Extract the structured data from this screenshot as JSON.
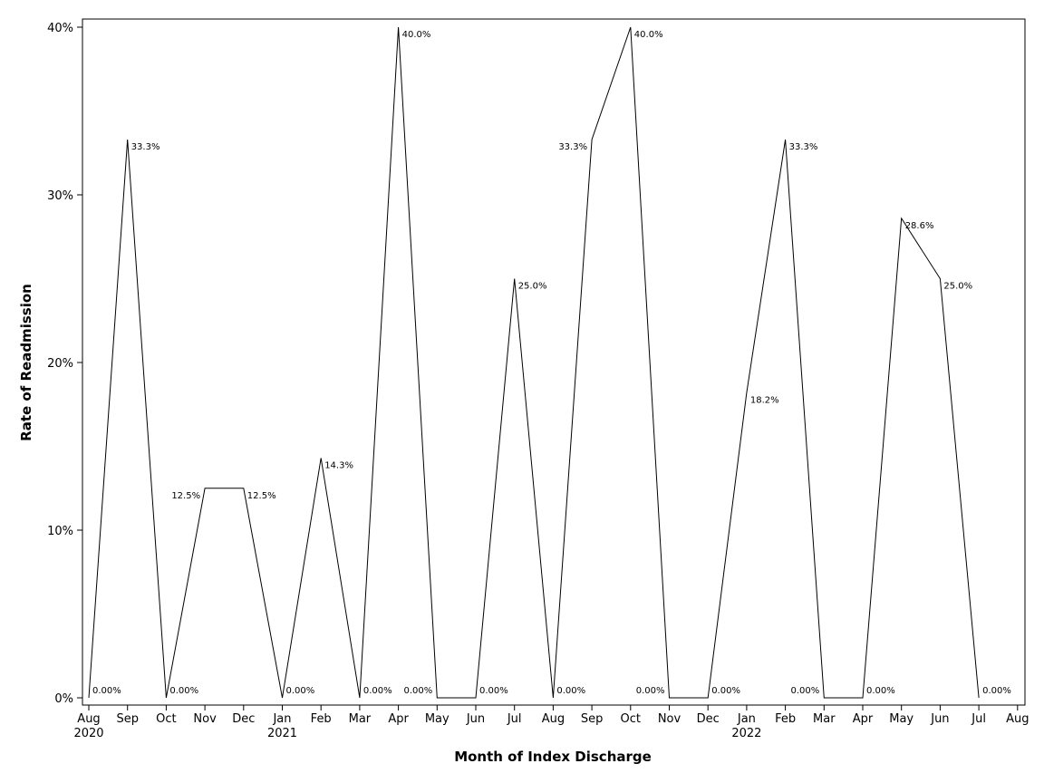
{
  "chart_data": {
    "type": "line",
    "xlabel": "Month of Index Discharge",
    "ylabel": "Rate of Readmission",
    "ylim": [
      0,
      40
    ],
    "y_ticks": [
      0,
      10,
      20,
      30,
      40
    ],
    "y_tick_labels": [
      "0%",
      "10%",
      "20%",
      "30%",
      "40%"
    ],
    "x_tick_labels": [
      [
        "Aug",
        "2020"
      ],
      [
        "Sep",
        ""
      ],
      [
        "Oct",
        ""
      ],
      [
        "Nov",
        ""
      ],
      [
        "Dec",
        ""
      ],
      [
        "Jan",
        "2021"
      ],
      [
        "Feb",
        ""
      ],
      [
        "Mar",
        ""
      ],
      [
        "Apr",
        ""
      ],
      [
        "May",
        ""
      ],
      [
        "Jun",
        ""
      ],
      [
        "Jul",
        ""
      ],
      [
        "Aug",
        ""
      ],
      [
        "Sep",
        ""
      ],
      [
        "Oct",
        ""
      ],
      [
        "Nov",
        ""
      ],
      [
        "Dec",
        ""
      ],
      [
        "Jan",
        "2022"
      ],
      [
        "Feb",
        ""
      ],
      [
        "Mar",
        ""
      ],
      [
        "Apr",
        ""
      ],
      [
        "May",
        ""
      ],
      [
        "Jun",
        ""
      ],
      [
        "Jul",
        ""
      ],
      [
        "Aug",
        ""
      ]
    ],
    "grid": false,
    "legend": "none",
    "series": [
      {
        "points": [
          {
            "x": "2020-08",
            "y": 0,
            "label": "0.00%",
            "pos": "right"
          },
          {
            "x": "2020-09",
            "y": 33.3,
            "label": "33.3%",
            "pos": "right"
          },
          {
            "x": "2020-10",
            "y": 0,
            "label": "0.00%",
            "pos": "right"
          },
          {
            "x": "2020-11",
            "y": 12.5,
            "label": "12.5%",
            "pos": "left"
          },
          {
            "x": "2020-12",
            "y": 12.5,
            "label": "12.5%",
            "pos": "right"
          },
          {
            "x": "2021-01",
            "y": 0,
            "label": "0.00%",
            "pos": "right"
          },
          {
            "x": "2021-02",
            "y": 14.3,
            "label": "14.3%",
            "pos": "right"
          },
          {
            "x": "2021-03",
            "y": 0,
            "label": "0.00%",
            "pos": "right"
          },
          {
            "x": "2021-04",
            "y": 40.0,
            "label": "40.0%",
            "pos": "right"
          },
          {
            "x": "2021-05",
            "y": 0,
            "label": "0.00%",
            "pos": "left"
          },
          {
            "x": "2021-06",
            "y": 0,
            "label": "0.00%",
            "pos": "right"
          },
          {
            "x": "2021-07",
            "y": 25.0,
            "label": "25.0%",
            "pos": "right"
          },
          {
            "x": "2021-08",
            "y": 0,
            "label": "0.00%",
            "pos": "right"
          },
          {
            "x": "2021-09",
            "y": 33.3,
            "label": "33.3%",
            "pos": "left"
          },
          {
            "x": "2021-10",
            "y": 40.0,
            "label": "40.0%",
            "pos": "right"
          },
          {
            "x": "2021-11",
            "y": 0,
            "label": "0.00%",
            "pos": "left"
          },
          {
            "x": "2021-12",
            "y": 0,
            "label": "0.00%",
            "pos": "right"
          },
          {
            "x": "2022-01",
            "y": 18.2,
            "label": "18.2%",
            "pos": "right"
          },
          {
            "x": "2022-02",
            "y": 33.3,
            "label": "33.3%",
            "pos": "right"
          },
          {
            "x": "2022-03",
            "y": 0,
            "label": "0.00%",
            "pos": "left"
          },
          {
            "x": "2022-04",
            "y": 0,
            "label": "0.00%",
            "pos": "right"
          },
          {
            "x": "2022-05",
            "y": 28.6,
            "label": "28.6%",
            "pos": "right"
          },
          {
            "x": "2022-06",
            "y": 25.0,
            "label": "25.0%",
            "pos": "right"
          },
          {
            "x": "2022-07",
            "y": 0,
            "label": "0.00%",
            "pos": "right"
          }
        ]
      }
    ]
  }
}
